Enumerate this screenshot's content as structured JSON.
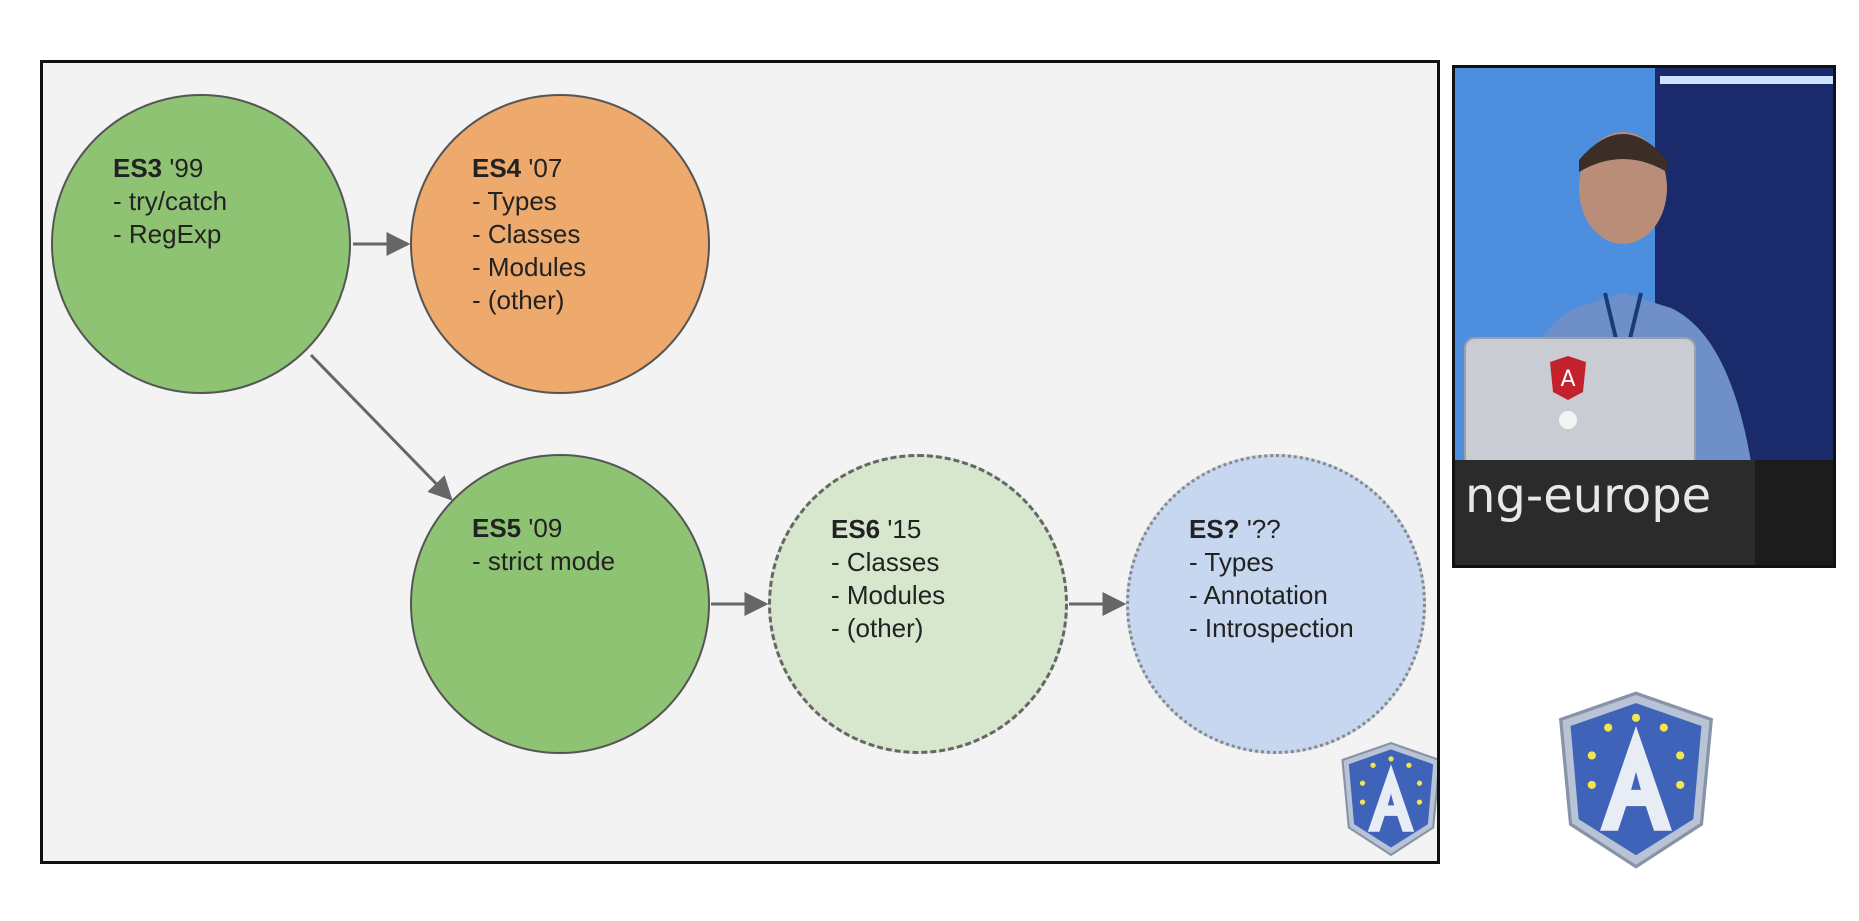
{
  "slide": {
    "nodes": [
      {
        "id": "es3",
        "title": "ES3",
        "year": "'99",
        "items": [
          "- try/catch",
          "- RegExp"
        ]
      },
      {
        "id": "es4",
        "title": "ES4",
        "year": "'07",
        "items": [
          "- Types",
          "- Classes",
          "- Modules",
          "- (other)"
        ]
      },
      {
        "id": "es5",
        "title": "ES5",
        "year": "'09",
        "items": [
          "- strict mode"
        ]
      },
      {
        "id": "es6",
        "title": "ES6",
        "year": "'15",
        "items": [
          "- Classes",
          "- Modules",
          "- (other)"
        ]
      },
      {
        "id": "esq",
        "title": "ES?",
        "year": "'??",
        "items": [
          "- Types",
          "- Annotation",
          "- Introspection"
        ]
      }
    ],
    "edges": [
      {
        "from": "es3",
        "to": "es4"
      },
      {
        "from": "es3",
        "to": "es5"
      },
      {
        "from": "es5",
        "to": "es6"
      },
      {
        "from": "es6",
        "to": "esq"
      }
    ]
  },
  "video": {
    "banner_text": "ng-europe",
    "laptop_logo": "angular-logo-icon"
  },
  "branding": {
    "badge_icon": "ng-europe-shield-icon",
    "badge_letter": "A"
  },
  "colors": {
    "es3_es5_green": "#8fc374",
    "es4_orange": "#eea96d",
    "es6_light_green": "#d6e7cd",
    "es_next_blue": "#c6d7ef"
  }
}
